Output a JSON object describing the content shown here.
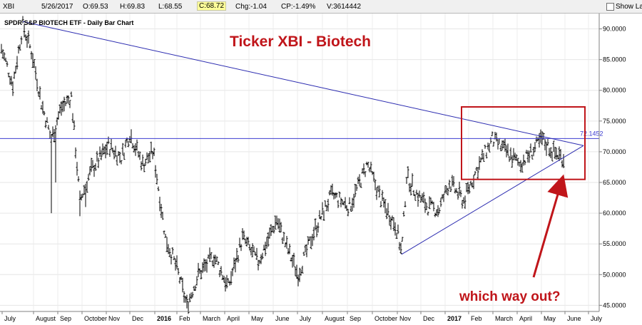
{
  "toolbar": {
    "symbol": "XBI",
    "date": "5/26/2017",
    "open": "O:69.53",
    "high": "H:69.83",
    "low": "L:68.55",
    "close": "C:68.72",
    "change": "Chg:-1.04",
    "change_pct": "CP:-1.49%",
    "volume": "V:3614442",
    "show_last_label": "Show Last"
  },
  "chart_data": {
    "type": "bar",
    "title": "SPDR S&P BIOTECH ETF - Daily Bar Chart",
    "annotation_title": "Ticker XBI - Biotech",
    "annotation_callout": "which way out?",
    "hline_label": "72.1452",
    "hline_value": 72.1452,
    "ylim": [
      44,
      92.5
    ],
    "y_ticks": [
      "90.0000",
      "85.0000",
      "80.0000",
      "75.0000",
      "70.0000",
      "65.0000",
      "60.0000",
      "55.0000",
      "50.0000",
      "45.0000"
    ],
    "x_labels": [
      "July",
      "August",
      "Sep",
      "October",
      "Nov",
      "Dec",
      "2016",
      "Feb",
      "March",
      "April",
      "May",
      "June",
      "July",
      "August",
      "Sep",
      "October",
      "Nov",
      "Dec",
      "2017",
      "Feb",
      "March",
      "April",
      "May",
      "June",
      "July"
    ],
    "price_path": [
      [
        0,
        87.5
      ],
      [
        18,
        81
      ],
      [
        32,
        90.5
      ],
      [
        45,
        86
      ],
      [
        58,
        78
      ],
      [
        72,
        72
      ],
      [
        85,
        77
      ],
      [
        100,
        79
      ],
      [
        112,
        62
      ],
      [
        128,
        67
      ],
      [
        152,
        71
      ],
      [
        170,
        69
      ],
      [
        182,
        73
      ],
      [
        200,
        68
      ],
      [
        215,
        70
      ],
      [
        232,
        56
      ],
      [
        248,
        51
      ],
      [
        262,
        45
      ],
      [
        278,
        50
      ],
      [
        300,
        53
      ],
      [
        320,
        48
      ],
      [
        340,
        56
      ],
      [
        362,
        52
      ],
      [
        388,
        59
      ],
      [
        400,
        55
      ],
      [
        418,
        50
      ],
      [
        440,
        57
      ],
      [
        465,
        63
      ],
      [
        490,
        61
      ],
      [
        515,
        68
      ],
      [
        535,
        62
      ],
      [
        555,
        58
      ],
      [
        563,
        53.5
      ],
      [
        570,
        66
      ],
      [
        585,
        63
      ],
      [
        600,
        61
      ],
      [
        615,
        60.5
      ],
      [
        630,
        65
      ],
      [
        650,
        62
      ],
      [
        668,
        67
      ],
      [
        690,
        72
      ],
      [
        710,
        70
      ],
      [
        728,
        68
      ],
      [
        742,
        69.5
      ],
      [
        760,
        72
      ],
      [
        775,
        70
      ],
      [
        790,
        69
      ]
    ],
    "price_ticks": [
      [
        72,
        60
      ],
      [
        78,
        65
      ],
      [
        112,
        59.5
      ],
      [
        120,
        61
      ],
      [
        262,
        44.5
      ],
      [
        418,
        49.5
      ],
      [
        563,
        53.3
      ]
    ],
    "downtrend": [
      [
        32,
        91.2
      ],
      [
        818,
        71
      ]
    ],
    "uptrend": [
      [
        563,
        53.3
      ],
      [
        818,
        71
      ]
    ],
    "box_range": [
      [
        647,
        65.5
      ],
      [
        820,
        77.3
      ]
    ],
    "colors": {
      "bars": "#000000",
      "trendlines": "#2b2bb0",
      "hline": "#3b3bd0",
      "annotation": "#c0151a",
      "box": "#c0151a"
    }
  }
}
